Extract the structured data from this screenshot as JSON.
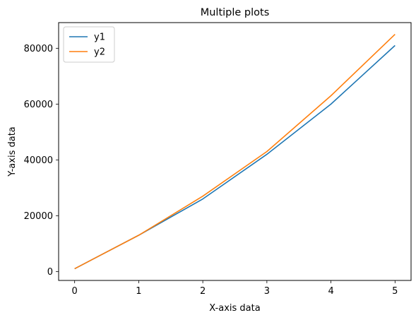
{
  "chart_data": {
    "type": "line",
    "title": "Multiple plots",
    "xlabel": "X-axis data",
    "ylabel": "Y-axis data",
    "x": [
      0,
      1,
      2,
      3,
      4,
      5
    ],
    "series": [
      {
        "name": "y1",
        "color": "#1f77b4",
        "values": [
          1000,
          13000,
          26000,
          42000,
          60000,
          81000
        ]
      },
      {
        "name": "y2",
        "color": "#ff7f0e",
        "values": [
          1000,
          13000,
          27000,
          43000,
          63000,
          85000
        ]
      }
    ],
    "xlim": [
      -0.25,
      5.25
    ],
    "ylim": [
      -3200,
      89200
    ],
    "xticks": [
      0,
      1,
      2,
      3,
      4,
      5
    ],
    "yticks": [
      0,
      20000,
      40000,
      60000,
      80000
    ],
    "xtick_labels": [
      "0",
      "1",
      "2",
      "3",
      "4",
      "5"
    ],
    "ytick_labels": [
      "0",
      "20000",
      "40000",
      "60000",
      "80000"
    ],
    "legend_position": "top-left",
    "grid": false
  }
}
